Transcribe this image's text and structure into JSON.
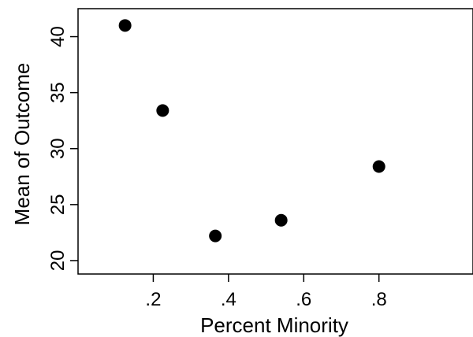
{
  "chart_data": {
    "type": "scatter",
    "xlabel": "Percent Minority",
    "ylabel": "Mean of Outcome",
    "xlim": [
      0.0,
      1.05
    ],
    "ylim": [
      18.8,
      42.5
    ],
    "x_ticks": [
      0.2,
      0.4,
      0.6,
      0.8
    ],
    "x_tick_labels": [
      ".2",
      ".4",
      ".6",
      ".8"
    ],
    "y_ticks": [
      20,
      25,
      30,
      35,
      40
    ],
    "y_tick_labels": [
      "20",
      "25",
      "30",
      "35",
      "40"
    ],
    "grid": false,
    "points": [
      {
        "x": 0.125,
        "y": 41.0
      },
      {
        "x": 0.225,
        "y": 33.4
      },
      {
        "x": 0.365,
        "y": 22.2
      },
      {
        "x": 0.54,
        "y": 23.6
      },
      {
        "x": 0.8,
        "y": 28.4
      }
    ],
    "marker_color": "#000000"
  }
}
